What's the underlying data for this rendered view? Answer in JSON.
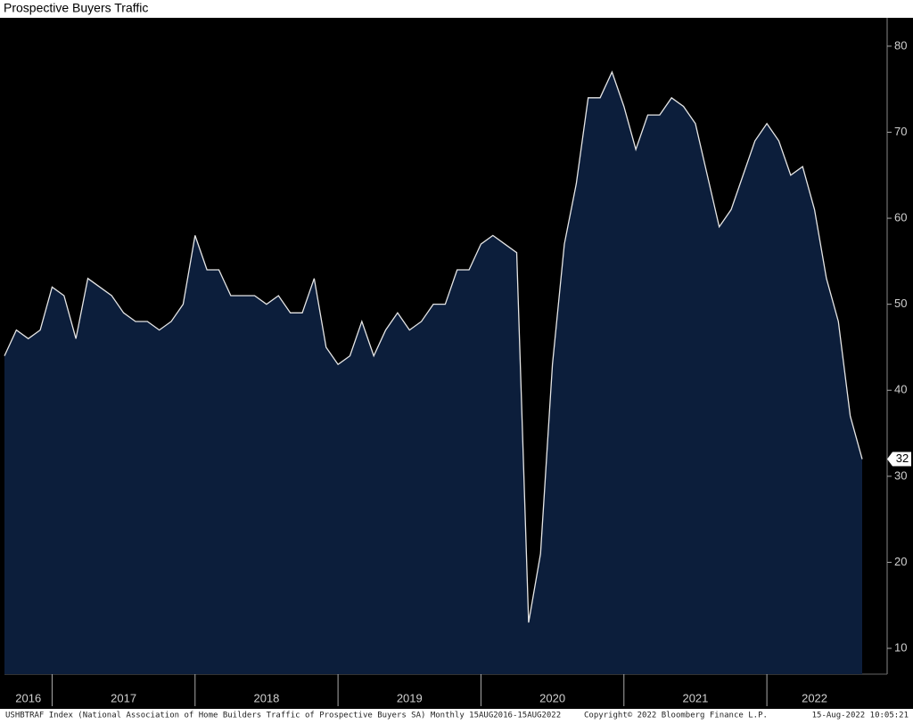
{
  "chart_data": {
    "type": "area",
    "title": "Prospective Buyers Traffic",
    "categories": [
      "2016",
      null,
      null,
      null,
      "2017",
      null,
      null,
      null,
      null,
      null,
      null,
      null,
      null,
      null,
      null,
      null,
      "2018",
      null,
      null,
      null,
      null,
      null,
      null,
      null,
      null,
      null,
      null,
      null,
      "2019",
      null,
      null,
      null,
      null,
      null,
      null,
      null,
      null,
      null,
      null,
      null,
      "2020",
      null,
      null,
      null,
      null,
      null,
      null,
      null,
      null,
      null,
      null,
      null,
      "2021",
      null,
      null,
      null,
      null,
      null,
      null,
      null,
      null,
      null,
      null,
      null,
      "2022",
      null,
      null,
      null,
      null,
      null,
      null,
      null,
      null
    ],
    "values": [
      44,
      47,
      46,
      47,
      52,
      51,
      46,
      53,
      52,
      51,
      49,
      48,
      48,
      47,
      48,
      50,
      58,
      54,
      54,
      51,
      51,
      51,
      50,
      51,
      49,
      49,
      53,
      45,
      43,
      44,
      48,
      44,
      47,
      49,
      47,
      48,
      50,
      50,
      54,
      54,
      57,
      58,
      57,
      56,
      13,
      21,
      43,
      57,
      64,
      74,
      74,
      77,
      73,
      68,
      72,
      72,
      74,
      73,
      71,
      65,
      59,
      61,
      65,
      69,
      71,
      69,
      65,
      66,
      61,
      53,
      48,
      37,
      32
    ],
    "color": "#0c1e3b",
    "line_color": "#e6e6e6",
    "ylim": [
      7,
      83.3
    ],
    "yticks": [
      10,
      20,
      30,
      40,
      50,
      60,
      70,
      80
    ],
    "footer": {
      "source": "USHBTRAF Index (National Association of Home Builders Traffic of Prospective Buyers SA)  Monthly 15AUG2016-15AUG2022",
      "copyright": "Copyright© 2022 Bloomberg Finance L.P.",
      "timestamp": "15-Aug-2022 10:05:21"
    }
  }
}
